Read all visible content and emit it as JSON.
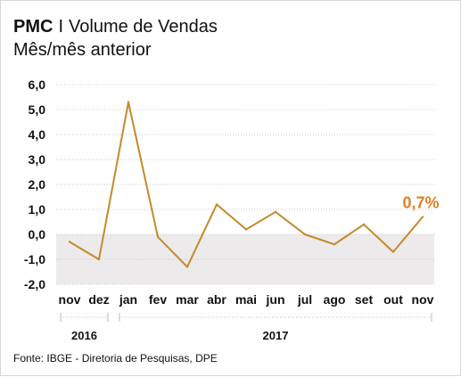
{
  "header": {
    "title_bold": "PMC",
    "title_sep": "I",
    "title_rest": "Volume de Vendas",
    "subtitle": "Mês/mês anterior"
  },
  "source": "Fonte: IBGE - Diretoria de Pesquisas, DPE",
  "colors": {
    "line": "#c48a2a",
    "annotation": "#e07f22",
    "negative_band": "#eceaea",
    "grid": "#c8c8c8"
  },
  "chart_data": {
    "type": "line",
    "categories": [
      "nov",
      "dez",
      "jan",
      "fev",
      "mar",
      "abr",
      "mai",
      "jun",
      "jul",
      "ago",
      "set",
      "out",
      "nov"
    ],
    "year_groups": [
      {
        "label": "2016",
        "start": 0,
        "end": 1
      },
      {
        "label": "2017",
        "start": 2,
        "end": 12
      }
    ],
    "values": [
      -0.3,
      -1.0,
      5.3,
      -0.1,
      -1.3,
      1.2,
      0.2,
      0.9,
      0.0,
      -0.4,
      0.4,
      -0.7,
      0.7
    ],
    "ylim": [
      -2.0,
      6.0
    ],
    "yticks": [
      "6,0",
      "5,0",
      "4,0",
      "3,0",
      "2,0",
      "1,0",
      "0,0",
      "-1,0",
      "-2,0"
    ],
    "annotation": {
      "index": 12,
      "text": "0,7%"
    },
    "grid": true
  }
}
